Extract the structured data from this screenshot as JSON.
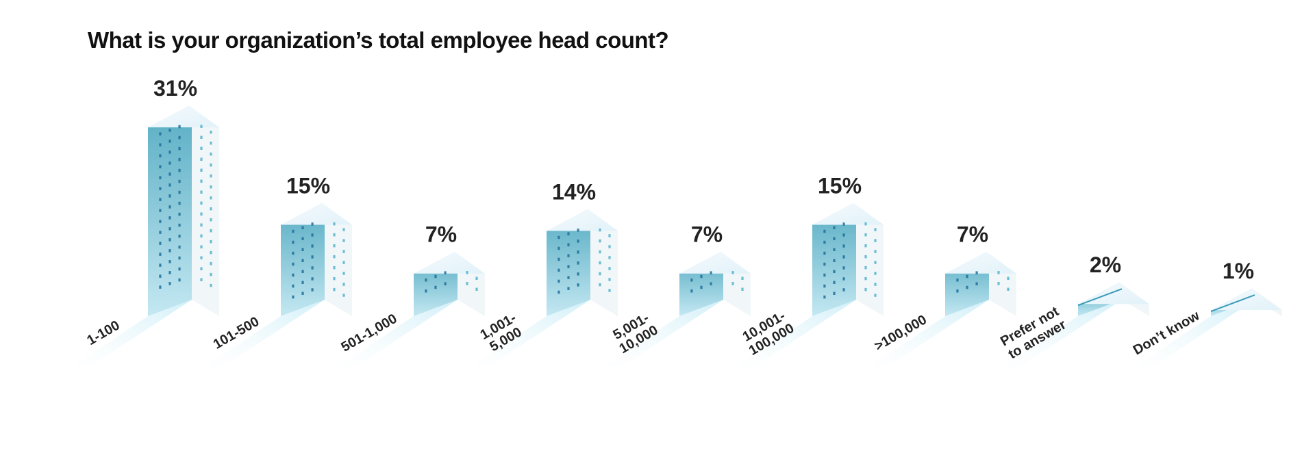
{
  "chart_data": {
    "type": "bar",
    "title": "What is your organization’s total employee head count?",
    "categories": [
      "1-100",
      "101-500",
      "501-1,000",
      "1,001-\n5,000",
      "5,001-\n10,000",
      "10,001-\n100,000",
      ">100,000",
      "Prefer not\nto answer",
      "Don’t know"
    ],
    "values": [
      31,
      15,
      7,
      14,
      7,
      15,
      7,
      2,
      1
    ],
    "value_labels": [
      "31%",
      "15%",
      "7%",
      "14%",
      "7%",
      "15%",
      "7%",
      "2%",
      "1%"
    ],
    "unit": "%",
    "xlabel": "",
    "ylabel": "",
    "legend": "none",
    "grid": false
  },
  "colors": {
    "front_top": "#5aaec4",
    "front_bottom": "#bfe6f1",
    "side": "#f1f6f9",
    "roof": "#e9f5fa",
    "window_dark": "#1f6f9a",
    "window_light": "#5ab7cf",
    "shadow": "#d8f0f8",
    "text": "#222222"
  }
}
